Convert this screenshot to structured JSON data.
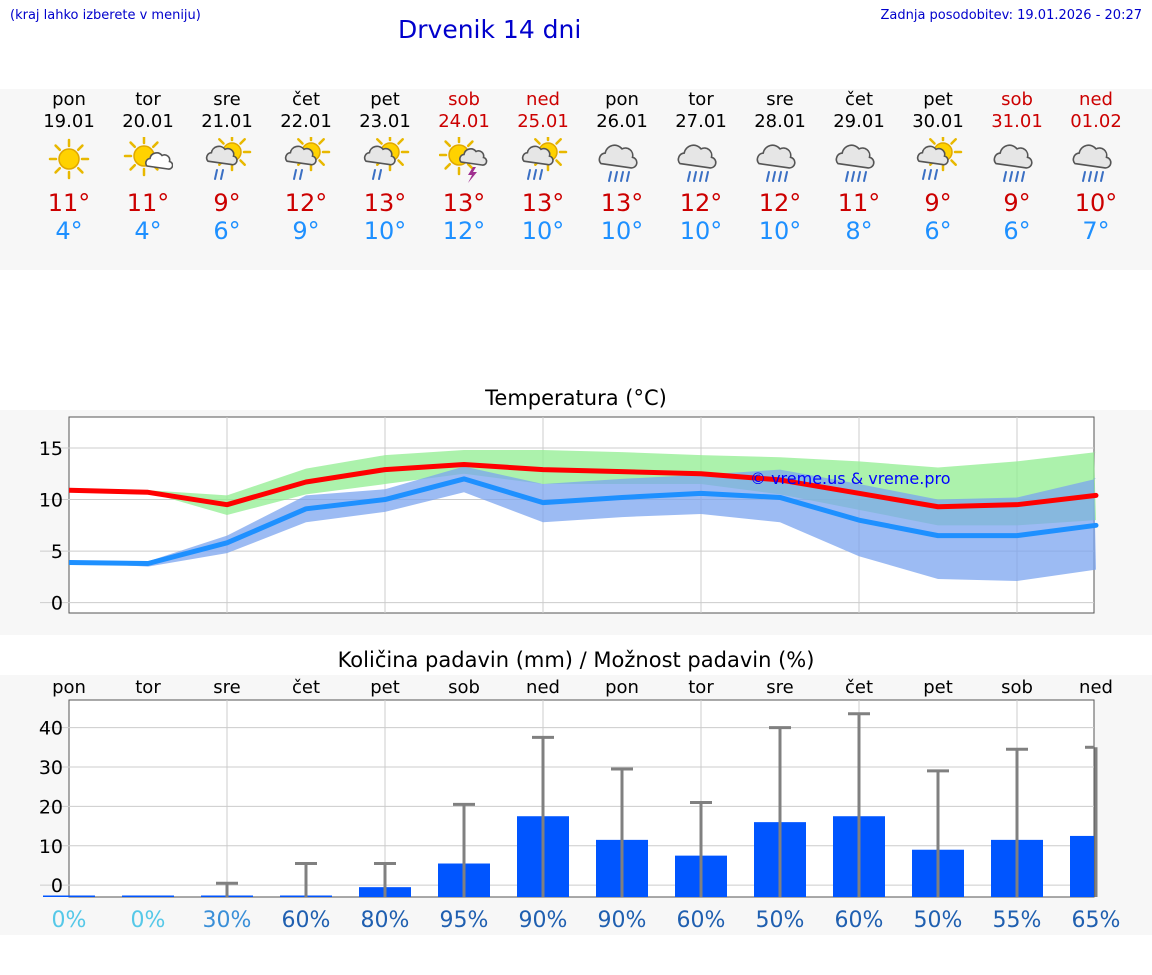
{
  "header": {
    "menu_hint": "(kraj lahko izberete v meniju)",
    "title": "Drvenik 14 dni",
    "last_update": "Zadnja posodobitev: 19.01.2026 - 20:27"
  },
  "colors": {
    "title_blue": "#0000cc",
    "max_red": "#cc0000",
    "min_blue": "#1e90ff",
    "bar_blue": "#0055ff",
    "band_green": "#90ee90",
    "band_blue": "#7ba4ef",
    "pct_light": "#55c8e8",
    "pct_dark": "#1f5fb0"
  },
  "days": [
    {
      "name": "pon",
      "date": "19.01",
      "icon": "sun-icon",
      "max": "11°",
      "min": "4°",
      "weekend": false
    },
    {
      "name": "tor",
      "date": "20.01",
      "icon": "sun-cloud-icon",
      "max": "11°",
      "min": "4°",
      "weekend": false
    },
    {
      "name": "sre",
      "date": "21.01",
      "icon": "sun-rain-icon",
      "max": "9°",
      "min": "6°",
      "weekend": false
    },
    {
      "name": "čet",
      "date": "22.01",
      "icon": "sun-rain-icon",
      "max": "12°",
      "min": "9°",
      "weekend": false
    },
    {
      "name": "pet",
      "date": "23.01",
      "icon": "sun-rain-icon",
      "max": "13°",
      "min": "10°",
      "weekend": false
    },
    {
      "name": "sob",
      "date": "24.01",
      "icon": "sun-storm-icon",
      "max": "13°",
      "min": "12°",
      "weekend": true
    },
    {
      "name": "ned",
      "date": "25.01",
      "icon": "sun-heavy-rain-icon",
      "max": "13°",
      "min": "10°",
      "weekend": true
    },
    {
      "name": "pon",
      "date": "26.01",
      "icon": "cloud-rain-icon",
      "max": "13°",
      "min": "10°",
      "weekend": false
    },
    {
      "name": "tor",
      "date": "27.01",
      "icon": "cloud-rain-icon",
      "max": "12°",
      "min": "10°",
      "weekend": false
    },
    {
      "name": "sre",
      "date": "28.01",
      "icon": "cloud-rain-icon",
      "max": "12°",
      "min": "10°",
      "weekend": false
    },
    {
      "name": "čet",
      "date": "29.01",
      "icon": "cloud-rain-icon",
      "max": "11°",
      "min": "8°",
      "weekend": false
    },
    {
      "name": "pet",
      "date": "30.01",
      "icon": "sun-heavy-rain-icon",
      "max": "9°",
      "min": "6°",
      "weekend": false
    },
    {
      "name": "sob",
      "date": "31.01",
      "icon": "cloud-rain-icon",
      "max": "9°",
      "min": "6°",
      "weekend": true
    },
    {
      "name": "ned",
      "date": "01.02",
      "icon": "cloud-rain-icon",
      "max": "10°",
      "min": "7°",
      "weekend": true
    }
  ],
  "chart_data": [
    {
      "type": "line",
      "title": "Temperatura (°C)",
      "ylim": [
        -1,
        18
      ],
      "yticks": [
        0,
        5,
        10,
        15
      ],
      "x": [
        0,
        1,
        2,
        3,
        4,
        5,
        6,
        7,
        8,
        9,
        10,
        11,
        12,
        13
      ],
      "watermark": "© vreme.us & vreme.pro",
      "series": [
        {
          "name": "max",
          "color": "#ff0000",
          "values": [
            10.9,
            10.7,
            9.5,
            11.7,
            12.9,
            13.4,
            12.9,
            12.7,
            12.5,
            11.9,
            10.6,
            9.3,
            9.5,
            10.4
          ]
        },
        {
          "name": "min",
          "color": "#1e90ff",
          "values": [
            3.9,
            3.8,
            5.8,
            9.1,
            10.0,
            12.0,
            9.7,
            10.2,
            10.6,
            10.2,
            8.0,
            6.5,
            6.5,
            7.5
          ]
        }
      ],
      "bands": [
        {
          "name": "max-range",
          "color": "#90ee90",
          "low": [
            10.9,
            10.7,
            8.5,
            10.5,
            11.5,
            12.5,
            11.5,
            11.5,
            11.5,
            10.5,
            9.0,
            7.5,
            7.5,
            8.0
          ],
          "high": [
            10.9,
            10.9,
            10.4,
            13.0,
            14.3,
            14.8,
            14.8,
            14.6,
            14.3,
            14.1,
            13.7,
            13.1,
            13.7,
            14.6
          ]
        },
        {
          "name": "min-range",
          "color": "#7ba4ef",
          "low": [
            3.9,
            3.5,
            4.8,
            7.8,
            8.8,
            10.7,
            7.8,
            8.3,
            8.6,
            7.8,
            4.5,
            2.3,
            2.1,
            3.2
          ],
          "high": [
            3.9,
            4.0,
            6.5,
            10.4,
            11.0,
            13.2,
            11.5,
            12.0,
            12.4,
            12.9,
            11.5,
            10.0,
            10.2,
            12.0
          ]
        }
      ]
    },
    {
      "type": "bar",
      "title": "Količina padavin (mm) / Možnost padavin (%)",
      "ylim": [
        -3,
        47
      ],
      "yticks": [
        0,
        10,
        20,
        30,
        40
      ],
      "categories": [
        "pon",
        "tor",
        "sre",
        "čet",
        "pet",
        "sob",
        "ned",
        "pon",
        "tor",
        "sre",
        "čet",
        "pet",
        "sob",
        "ned"
      ],
      "values": [
        -3,
        -3,
        -3,
        -3,
        -0.5,
        5.5,
        17.5,
        11.5,
        7.5,
        16,
        17.5,
        9,
        11.5,
        12.5
      ],
      "error_high": [
        -3,
        -3,
        0.5,
        5.5,
        5.5,
        20.5,
        37.5,
        29.5,
        21,
        40,
        43.5,
        29,
        34.5,
        35
      ],
      "error_low": [
        -3,
        -3,
        -3,
        -3,
        -3,
        -3,
        -3,
        -3,
        -3,
        -3,
        -3,
        -3,
        -3,
        -3
      ],
      "probability": [
        "0%",
        "0%",
        "30%",
        "60%",
        "80%",
        "95%",
        "90%",
        "90%",
        "60%",
        "50%",
        "60%",
        "50%",
        "55%",
        "65%"
      ],
      "probability_level": [
        "light",
        "light",
        "mid",
        "dark",
        "dark",
        "dark",
        "dark",
        "dark",
        "dark",
        "dark",
        "dark",
        "dark",
        "dark",
        "dark"
      ]
    }
  ]
}
